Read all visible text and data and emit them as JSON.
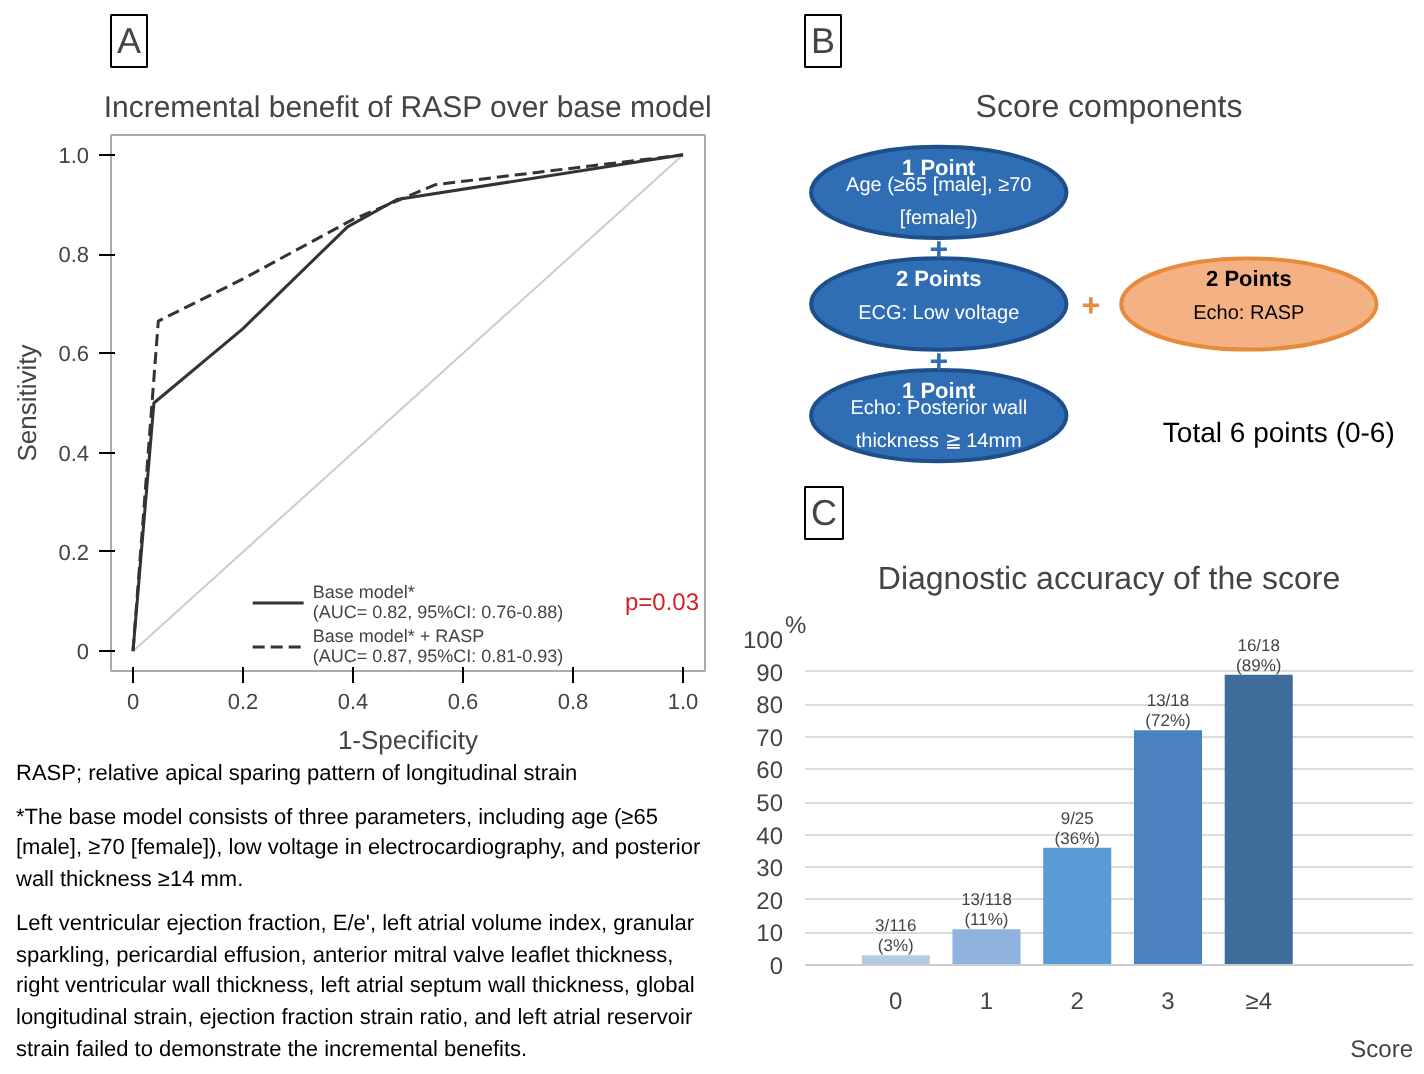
{
  "chart_data": [
    {
      "type": "line",
      "title": "Incremental benefit of RASP over base model",
      "xlabel": "1-Specificity",
      "ylabel": "Sensitivity",
      "xlim": [
        -0.04,
        1.04
      ],
      "ylim": [
        -0.04,
        1.04
      ],
      "xticks": [
        0,
        {
          "value": 0.2,
          "label": "0.2"
        },
        {
          "value": 0.4,
          "label": "0.4"
        },
        {
          "value": 0.6,
          "label": "0.6"
        },
        {
          "value": 0.8,
          "label": "0.8"
        },
        {
          "value": 1,
          "label": "1.0"
        }
      ],
      "yticks": [
        0,
        {
          "value": 0.2,
          "label": "0.2"
        },
        {
          "value": 0.4,
          "label": "0.4"
        },
        {
          "value": 0.6,
          "label": "0.6"
        },
        {
          "value": 0.8,
          "label": "0.8"
        },
        {
          "value": 1,
          "label": "1.0"
        }
      ],
      "grid": false,
      "legend": "bottom",
      "series": [
        {
          "color": "#cccccc",
          "line_style": "solid",
          "x": [
            0,
            1
          ],
          "values": [
            0,
            1
          ]
        },
        {
          "name": "Base model* (AUC= 0.82, 95%CI: 0.76-0.88)",
          "color": "#333333",
          "line_style": "solid",
          "x": [
            0,
            0.038,
            0.2,
            0.39,
            0.48,
            1
          ],
          "values": [
            0,
            0.5,
            0.65,
            0.855,
            0.91,
            1
          ]
        },
        {
          "name": "Base model* + RASP (AUC= 0.87, 95%CI: 0.81-0.93)",
          "color": "#333333",
          "line_style": "dashed",
          "x": [
            0,
            0.046,
            0.2,
            0.4,
            0.55,
            1
          ],
          "values": [
            0,
            0.665,
            0.75,
            0.87,
            0.94,
            1
          ]
        }
      ],
      "annotations": [
        "A",
        "p=0.03",
        "RASP; relative apical sparing pattern of longitudinal strain",
        "*The base model consists of three parameters, including age (≥65 [male], ≥70 [female]), low voltage in electrocardiography, and posterior wall thickness ≥14 mm.",
        "Left ventricular ejection fraction, E/e', left atrial volume index, granular sparkling, pericardial effusion, anterior mitral valve leaflet thickness, right ventricular wall thickness, left atrial septum wall thickness, global longitudinal strain, ejection fraction strain ratio, and left atrial reservoir strain failed to demonstrate the incremental benefits."
      ]
    },
    {
      "type": "other",
      "title": "Score components",
      "annotations": [
        "B",
        "1 Point",
        "Age (≥65 [male], ≥70 [female])",
        "2 Points",
        "ECG: Low voltage",
        "1 Point",
        "Echo: Posterior wall thickness ≧ 14mm",
        "2 Points",
        "Echo: RASP",
        "+",
        "+",
        "+",
        "Total 6 points (0-6)"
      ]
    },
    {
      "type": "bar",
      "title": "Diagnostic accuracy of the score",
      "xlabel": "Score",
      "ylabel": "%",
      "categories": [
        "0",
        "1",
        "2",
        "3",
        "≥4"
      ],
      "values": [
        3,
        11,
        36,
        72,
        89
      ],
      "colors": [
        "#b4cbe6",
        "#8fb2de",
        "#5b9bd5",
        "#4a82c0",
        "#3e6d9c"
      ],
      "value_labels": [
        "3/116\n(3%)",
        "13/118\n(11%)",
        "9/25\n(36%)",
        "13/18\n(72%)",
        "16/18\n(89%)"
      ],
      "ylim": [
        0,
        100
      ],
      "yticks": [
        0,
        10,
        20,
        30,
        40,
        50,
        60,
        70,
        80,
        90,
        100
      ],
      "grid": "y",
      "annotations": [
        "C"
      ]
    }
  ]
}
